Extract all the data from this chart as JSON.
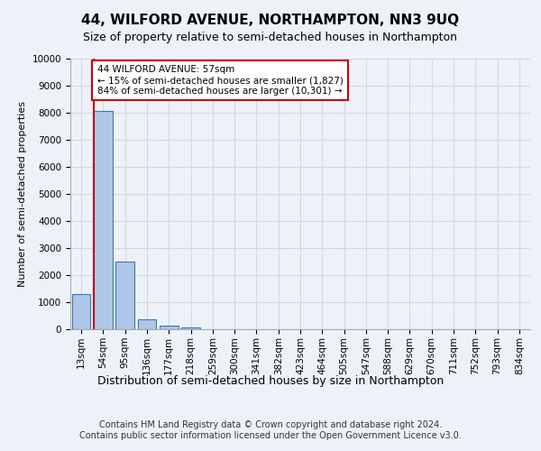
{
  "title": "44, WILFORD AVENUE, NORTHAMPTON, NN3 9UQ",
  "subtitle": "Size of property relative to semi-detached houses in Northampton",
  "xlabel": "Distribution of semi-detached houses by size in Northampton",
  "ylabel": "Number of semi-detached properties",
  "categories": [
    "13sqm",
    "54sqm",
    "95sqm",
    "136sqm",
    "177sqm",
    "218sqm",
    "259sqm",
    "300sqm",
    "341sqm",
    "382sqm",
    "423sqm",
    "464sqm",
    "505sqm",
    "547sqm",
    "588sqm",
    "629sqm",
    "670sqm",
    "711sqm",
    "752sqm",
    "793sqm",
    "834sqm"
  ],
  "values": [
    1300,
    8050,
    2500,
    380,
    150,
    80,
    0,
    0,
    0,
    0,
    0,
    0,
    0,
    0,
    0,
    0,
    0,
    0,
    0,
    0,
    0
  ],
  "bar_color": "#aec6e8",
  "bar_edge_color": "#3a78b5",
  "grid_color": "#d0d8e8",
  "background_color": "#eef2f8",
  "annotation_text_line1": "44 WILFORD AVENUE: 57sqm",
  "annotation_text_line2": "← 15% of semi-detached houses are smaller (1,827)",
  "annotation_text_line3": "84% of semi-detached houses are larger (10,301) →",
  "annotation_box_color": "#ffffff",
  "annotation_box_edge_color": "#cc0000",
  "vline_color": "#cc0000",
  "ylim": [
    0,
    10000
  ],
  "footer_line1": "Contains HM Land Registry data © Crown copyright and database right 2024.",
  "footer_line2": "Contains public sector information licensed under the Open Government Licence v3.0.",
  "title_fontsize": 11,
  "subtitle_fontsize": 9,
  "ylabel_fontsize": 8,
  "xlabel_fontsize": 9,
  "tick_fontsize": 7.5,
  "annotation_fontsize": 7.5,
  "footer_fontsize": 7
}
